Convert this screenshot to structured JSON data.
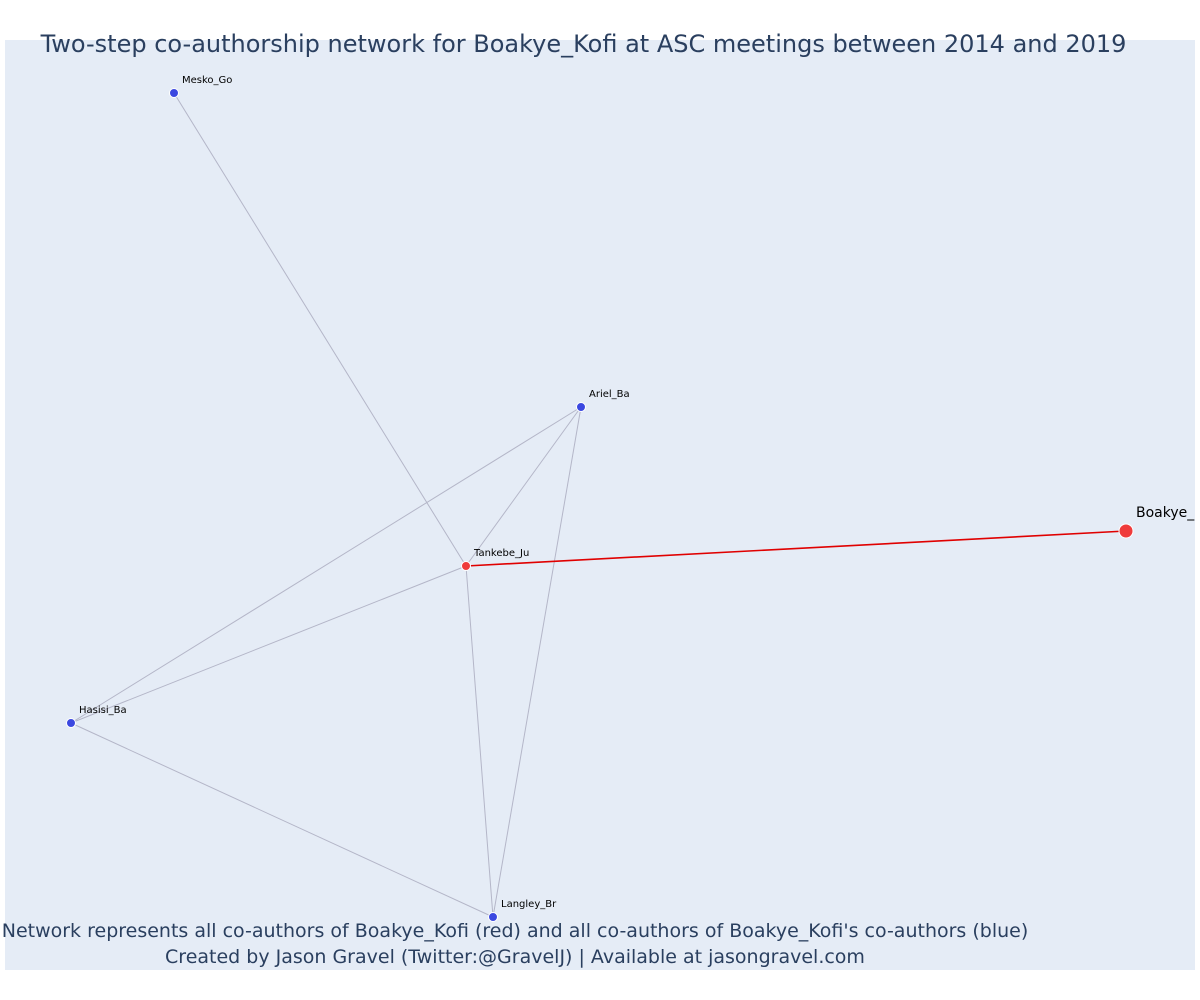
{
  "title": "Two-step co-authorship network for Boakye_Kofi at ASC meetings between 2014 and 2019",
  "footnote": {
    "line1": "Network represents all co-authors of Boakye_Kofi (red) and all co-authors of Boakye_Kofi's co-authors (blue)",
    "line2": "Created by Jason Gravel (Twitter:@GravelJ) | Available at jasongravel.com"
  },
  "colors": {
    "red": "#ef3b3b",
    "blue": "#3b48e0",
    "edge": "#b4b6c8",
    "focal_edge": "#e00000",
    "plot_bg": "#e5ecf6"
  },
  "nodes": [
    {
      "id": "Mesko_Go",
      "label": "Mesko_Go",
      "group": "blue"
    },
    {
      "id": "Ariel_Ba",
      "label": "Ariel_Ba",
      "group": "blue"
    },
    {
      "id": "Tankebe_Ju",
      "label": "Tankebe_Ju",
      "group": "red"
    },
    {
      "id": "Boakye_Kofi",
      "label": "Boakye_",
      "group": "red",
      "focal": true
    },
    {
      "id": "Hasisi_Ba",
      "label": "Hasisi_Ba",
      "group": "blue"
    },
    {
      "id": "Langley_Br",
      "label": "Langley_Br",
      "group": "blue"
    }
  ],
  "edges": [
    {
      "source": "Mesko_Go",
      "target": "Tankebe_Ju"
    },
    {
      "source": "Ariel_Ba",
      "target": "Tankebe_Ju"
    },
    {
      "source": "Ariel_Ba",
      "target": "Hasisi_Ba"
    },
    {
      "source": "Ariel_Ba",
      "target": "Langley_Br"
    },
    {
      "source": "Tankebe_Ju",
      "target": "Hasisi_Ba"
    },
    {
      "source": "Tankebe_Ju",
      "target": "Langley_Br"
    },
    {
      "source": "Hasisi_Ba",
      "target": "Langley_Br"
    },
    {
      "source": "Tankebe_Ju",
      "target": "Boakye_Kofi",
      "focal": true
    }
  ]
}
